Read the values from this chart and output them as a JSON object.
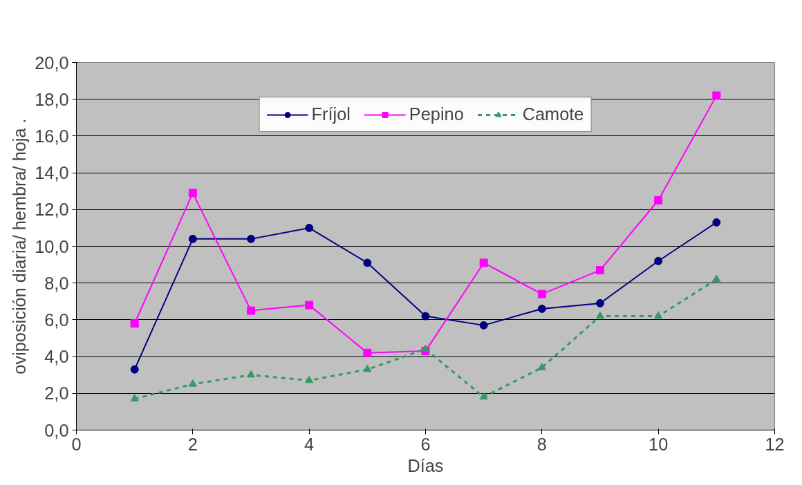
{
  "chart_data": {
    "type": "line",
    "xlabel": "Días",
    "ylabel": "oviposición diaria/ hembra/ hoja .",
    "x": [
      1,
      2,
      3,
      4,
      5,
      6,
      7,
      8,
      9,
      10,
      11
    ],
    "series": [
      {
        "name": "Fríjol",
        "color": "#000080",
        "marker": "circle",
        "line_style": "solid",
        "values": [
          3.3,
          10.4,
          10.4,
          11.0,
          9.1,
          6.2,
          5.7,
          6.6,
          6.9,
          9.2,
          11.3
        ]
      },
      {
        "name": "Pepino",
        "color": "#ff00ff",
        "marker": "square",
        "line_style": "solid",
        "values": [
          5.8,
          12.9,
          6.5,
          6.8,
          4.2,
          4.3,
          9.1,
          7.4,
          8.7,
          12.5,
          18.2
        ]
      },
      {
        "name": "Camote",
        "color": "#339966",
        "marker": "triangle",
        "line_style": "dashed",
        "values": [
          1.7,
          2.5,
          3.0,
          2.7,
          3.3,
          4.4,
          1.8,
          3.4,
          6.2,
          6.2,
          8.2
        ]
      }
    ],
    "xlim": [
      0,
      12
    ],
    "xticks": [
      0,
      2,
      4,
      6,
      8,
      10,
      12
    ],
    "ylim": [
      0,
      20
    ],
    "yticks": [
      {
        "value": 0,
        "label": "0,0"
      },
      {
        "value": 2,
        "label": "2,0"
      },
      {
        "value": 4,
        "label": "4,0"
      },
      {
        "value": 6,
        "label": "6,0"
      },
      {
        "value": 8,
        "label": "8,0"
      },
      {
        "value": 10,
        "label": "10,0"
      },
      {
        "value": 12,
        "label": "12,0"
      },
      {
        "value": 14,
        "label": "14,0"
      },
      {
        "value": 16,
        "label": "16,0"
      },
      {
        "value": 18,
        "label": "18,0"
      },
      {
        "value": 20,
        "label": "20,0"
      }
    ],
    "grid": "y",
    "legend": "top"
  }
}
